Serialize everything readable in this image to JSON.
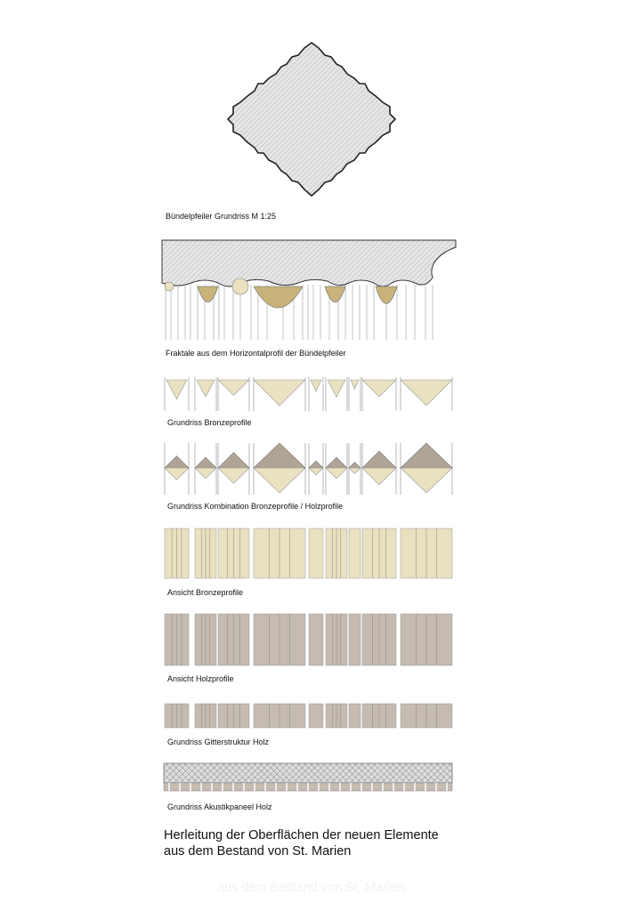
{
  "labels": {
    "pier_plan": "Bündelpfeiler Grundriss M 1:25",
    "fractals": "Fraktale aus dem Horizontalprofil der Bündelpfeiler",
    "bronze_plan": "Grundriss Bronzeprofile",
    "combination_plan": "Grundriss Kombination Bronzeprofile / Holzprofile",
    "bronze_elevation": "Ansicht Bronzeprofile",
    "wood_elevation": "Ansicht Holzprofile",
    "grid_plan": "Grundriss Gitterstruktur Holz",
    "acoustic_plan": "Grundriss Akustikpaneel Holz"
  },
  "caption": {
    "line1": "Herleitung der Oberflächen der neuen Elemente",
    "line2": "aus dem Bestand von St. Marien"
  }
}
